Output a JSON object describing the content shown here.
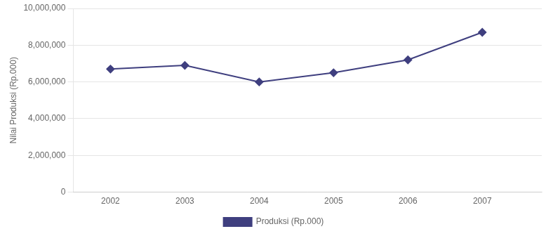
{
  "chart_data": {
    "type": "line",
    "y_label": "Nilai Produksi (Rp.000)",
    "x": [
      2002,
      2003,
      2004,
      2005,
      2006,
      2007
    ],
    "series": [
      {
        "name": "Produksi (Rp.000)",
        "color": "#3F3F7F",
        "marker": "diamond",
        "values": [
          6700000,
          6900000,
          6000000,
          6500000,
          7200000,
          8700000
        ]
      }
    ],
    "xlim": [
      2001.5,
      2007.8
    ],
    "xticks": [
      2002,
      2003,
      2004,
      2005,
      2006,
      2007
    ],
    "ylim": [
      0,
      10000000
    ],
    "yticks": [
      0,
      {
        "value": 2000000,
        "label": "2,000,000"
      },
      {
        "value": 4000000,
        "label": "4,000,000"
      },
      {
        "value": 6000000,
        "label": "6,000,000"
      },
      {
        "value": 8000000,
        "label": "8,000,000"
      },
      {
        "value": 10000000,
        "label": "10,000,000"
      }
    ],
    "grid": "y",
    "legend": "bottom"
  }
}
